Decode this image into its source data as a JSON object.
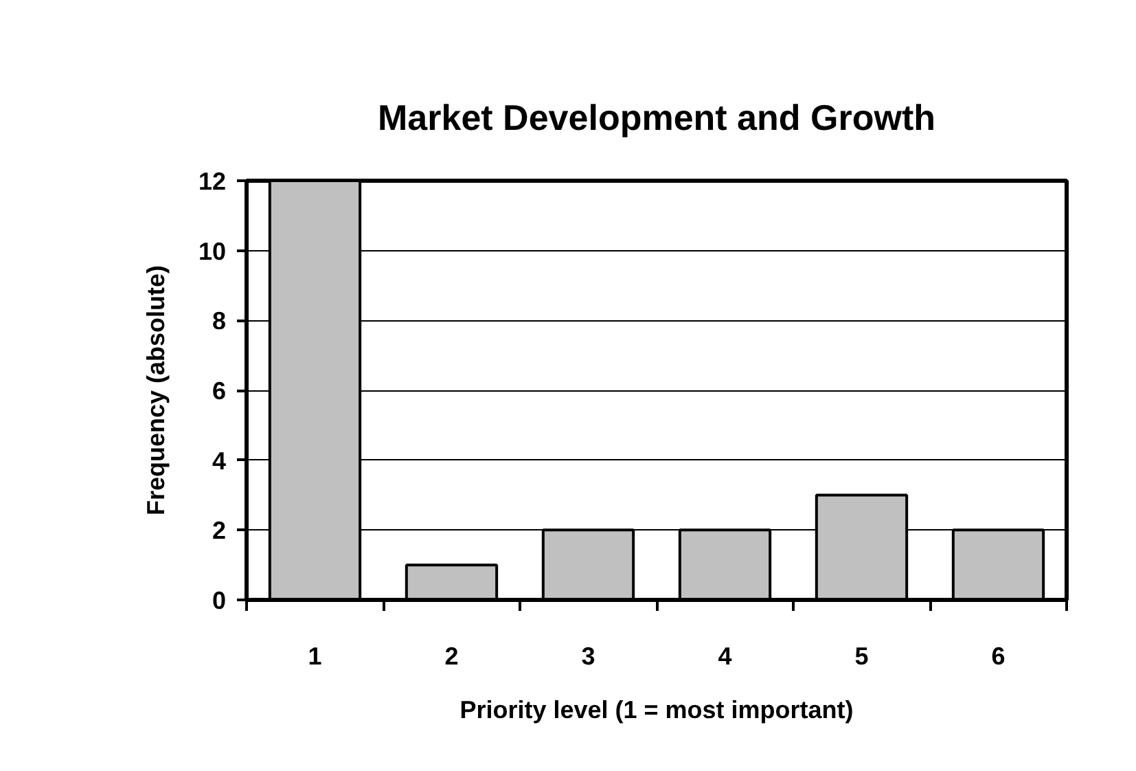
{
  "chart_data": {
    "type": "bar",
    "title": "Market Development and Growth",
    "xlabel": "Priority level (1 = most important)",
    "ylabel": "Frequency (absolute)",
    "categories": [
      "1",
      "2",
      "3",
      "4",
      "5",
      "6"
    ],
    "values": [
      12,
      1,
      2,
      2,
      3,
      2
    ],
    "color": "#c0c0c0",
    "ylim": [
      0,
      12
    ],
    "yticks": [
      0,
      2,
      4,
      6,
      8,
      10,
      12
    ],
    "grid": "y"
  }
}
